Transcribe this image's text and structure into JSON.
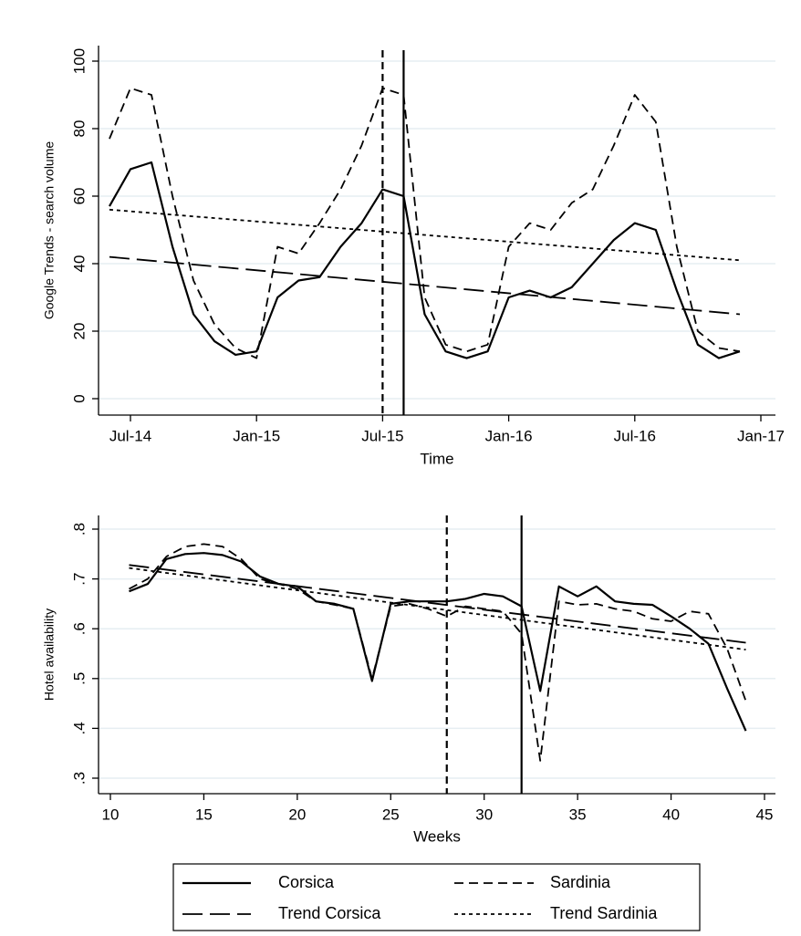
{
  "chart_data": [
    {
      "type": "line",
      "y_label": "Google Trends - search volume",
      "x_label": "Time",
      "x": [
        "2014-06",
        "2014-07",
        "2014-08",
        "2014-09",
        "2014-10",
        "2014-11",
        "2014-12",
        "2015-01",
        "2015-02",
        "2015-03",
        "2015-04",
        "2015-05",
        "2015-06",
        "2015-07",
        "2015-08",
        "2015-09",
        "2015-10",
        "2015-11",
        "2015-12",
        "2016-01",
        "2016-02",
        "2016-03",
        "2016-04",
        "2016-05",
        "2016-06",
        "2016-07",
        "2016-08",
        "2016-09",
        "2016-10",
        "2016-11",
        "2016-12"
      ],
      "series": [
        {
          "name": "Corsica",
          "color": "#000000",
          "dash": "none",
          "width": 2.2,
          "values": [
            57,
            68,
            70,
            45,
            25,
            17,
            13,
            14,
            30,
            35,
            36,
            45,
            52,
            62,
            60,
            25,
            14,
            12,
            14,
            30,
            32,
            30,
            33,
            40,
            47,
            52,
            50,
            32,
            16,
            12,
            14
          ]
        },
        {
          "name": "Sardinia",
          "color": "#000000",
          "dash": "10 6",
          "width": 1.8,
          "values": [
            77,
            92,
            90,
            60,
            35,
            22,
            15,
            12,
            45,
            43,
            52,
            62,
            75,
            92,
            90,
            30,
            16,
            14,
            16,
            45,
            52,
            50,
            58,
            62,
            75,
            90,
            82,
            45,
            20,
            15,
            14
          ]
        },
        {
          "name": "Trend Corsica",
          "color": "#000000",
          "dash": "22 8",
          "width": 1.8,
          "x": [
            "2014-06",
            "2016-12"
          ],
          "values": [
            42,
            25
          ]
        },
        {
          "name": "Trend Sardinia",
          "color": "#000000",
          "dash": "4 4",
          "width": 1.8,
          "x": [
            "2014-06",
            "2016-12"
          ],
          "values": [
            56,
            41
          ]
        }
      ],
      "vlines": [
        {
          "x": "2015-07",
          "dash": "8 5"
        },
        {
          "x": "2015-08",
          "dash": "none"
        }
      ],
      "xlim": [
        "2014-07",
        "2017-01"
      ],
      "xticks": [
        {
          "value": "2014-07",
          "label": "Jul-14"
        },
        {
          "value": "2015-01",
          "label": "Jan-15"
        },
        {
          "value": "2015-07",
          "label": "Jul-15"
        },
        {
          "value": "2016-01",
          "label": "Jan-16"
        },
        {
          "value": "2016-07",
          "label": "Jul-16"
        },
        {
          "value": "2017-01",
          "label": "Jan-17"
        }
      ],
      "ylim": [
        0,
        100
      ],
      "yticks": [
        0,
        20,
        40,
        60,
        80,
        100
      ],
      "grid": true
    },
    {
      "type": "line",
      "y_label": "Hotel availability",
      "x_label": "Weeks",
      "x": [
        11,
        12,
        13,
        14,
        15,
        16,
        17,
        18,
        19,
        20,
        21,
        22,
        23,
        24,
        25,
        26,
        27,
        28,
        29,
        30,
        31,
        32,
        33,
        34,
        35,
        36,
        37,
        38,
        39,
        40,
        41,
        42,
        43,
        44
      ],
      "series": [
        {
          "name": "Corsica",
          "color": "#000000",
          "dash": "none",
          "width": 2.2,
          "values": [
            0.675,
            0.69,
            0.74,
            0.75,
            0.752,
            0.748,
            0.735,
            0.705,
            0.69,
            0.685,
            0.655,
            0.65,
            0.64,
            0.495,
            0.65,
            0.655,
            0.655,
            0.655,
            0.66,
            0.67,
            0.665,
            0.645,
            0.475,
            0.685,
            0.665,
            0.685,
            0.655,
            0.65,
            0.648,
            0.625,
            0.6,
            0.57,
            0.48,
            0.395
          ]
        },
        {
          "name": "Sardinia",
          "color": "#000000",
          "dash": "10 6",
          "width": 1.8,
          "values": [
            0.68,
            0.7,
            0.745,
            0.765,
            0.77,
            0.765,
            0.74,
            0.7,
            0.69,
            0.68,
            0.655,
            0.648,
            0.64,
            0.5,
            0.645,
            0.65,
            0.64,
            0.625,
            0.645,
            0.64,
            0.635,
            0.59,
            0.335,
            0.655,
            0.648,
            0.65,
            0.64,
            0.635,
            0.62,
            0.615,
            0.635,
            0.63,
            0.56,
            0.455
          ]
        },
        {
          "name": "Trend Corsica",
          "color": "#000000",
          "dash": "22 8",
          "width": 1.8,
          "x": [
            11,
            44
          ],
          "values": [
            0.728,
            0.572
          ]
        },
        {
          "name": "Trend Sardinia",
          "color": "#000000",
          "dash": "4 4",
          "width": 1.8,
          "x": [
            11,
            44
          ],
          "values": [
            0.722,
            0.558
          ]
        }
      ],
      "vlines": [
        {
          "x": 28,
          "dash": "8 5"
        },
        {
          "x": 32,
          "dash": "none"
        }
      ],
      "xlim": [
        10,
        45
      ],
      "xticks": [
        10,
        15,
        20,
        25,
        30,
        35,
        40,
        45
      ],
      "ylim": [
        0.3,
        0.8
      ],
      "yticks": [
        {
          "value": 0.3,
          "label": ".3"
        },
        {
          "value": 0.4,
          "label": ".4"
        },
        {
          "value": 0.5,
          "label": ".5"
        },
        {
          "value": 0.6,
          "label": ".6"
        },
        {
          "value": 0.7,
          "label": ".7"
        },
        {
          "value": 0.8,
          "label": ".8"
        }
      ],
      "grid": true,
      "legend": "bottom"
    }
  ]
}
